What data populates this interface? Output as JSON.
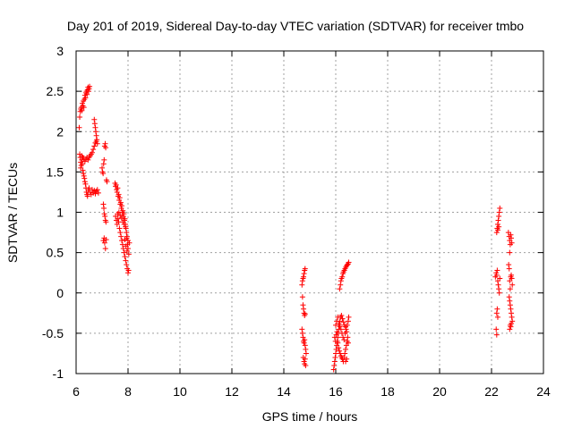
{
  "chart_data": {
    "type": "scatter",
    "title": "Day 201 of 2019, Sidereal Day-to-day VTEC variation (SDTVAR) for receiver tmbo",
    "xlabel": "GPS time / hours",
    "ylabel": "SDTVAR / TECUs",
    "xlim": [
      6,
      24
    ],
    "ylim": [
      -1,
      3
    ],
    "xticks": [
      6,
      8,
      10,
      12,
      14,
      16,
      18,
      20,
      22,
      24
    ],
    "yticks": [
      -1,
      -0.5,
      0,
      0.5,
      1,
      1.5,
      2,
      2.5,
      3
    ],
    "grid": true,
    "marker": "+",
    "color": "#ff0000",
    "series": [
      {
        "name": "tmbo",
        "points": [
          [
            6.12,
            2.05
          ],
          [
            6.14,
            2.18
          ],
          [
            6.16,
            2.25
          ],
          [
            6.18,
            2.28
          ],
          [
            6.2,
            2.3
          ],
          [
            6.22,
            2.26
          ],
          [
            6.24,
            2.35
          ],
          [
            6.26,
            2.32
          ],
          [
            6.28,
            2.38
          ],
          [
            6.3,
            2.3
          ],
          [
            6.32,
            2.4
          ],
          [
            6.34,
            2.45
          ],
          [
            6.36,
            2.42
          ],
          [
            6.38,
            2.48
          ],
          [
            6.4,
            2.5
          ],
          [
            6.42,
            2.46
          ],
          [
            6.44,
            2.52
          ],
          [
            6.46,
            2.55
          ],
          [
            6.48,
            2.5
          ],
          [
            6.5,
            2.53
          ],
          [
            6.52,
            2.56
          ],
          [
            6.14,
            1.72
          ],
          [
            6.16,
            1.68
          ],
          [
            6.18,
            1.62
          ],
          [
            6.18,
            1.55
          ],
          [
            6.2,
            1.58
          ],
          [
            6.22,
            1.65
          ],
          [
            6.24,
            1.6
          ],
          [
            6.26,
            1.52
          ],
          [
            6.28,
            1.48
          ],
          [
            6.3,
            1.45
          ],
          [
            6.32,
            1.42
          ],
          [
            6.34,
            1.38
          ],
          [
            6.36,
            1.35
          ],
          [
            6.38,
            1.3
          ],
          [
            6.4,
            1.25
          ],
          [
            6.42,
            1.22
          ],
          [
            6.44,
            1.2
          ],
          [
            6.46,
            1.25
          ],
          [
            6.48,
            1.28
          ],
          [
            6.22,
            1.7
          ],
          [
            6.26,
            1.68
          ],
          [
            6.3,
            1.66
          ],
          [
            6.34,
            1.63
          ],
          [
            6.38,
            1.66
          ],
          [
            6.42,
            1.68
          ],
          [
            6.46,
            1.65
          ],
          [
            6.5,
            1.68
          ],
          [
            6.54,
            1.7
          ],
          [
            6.58,
            1.72
          ],
          [
            6.62,
            1.74
          ],
          [
            6.66,
            1.78
          ],
          [
            6.7,
            1.82
          ],
          [
            6.74,
            1.86
          ],
          [
            6.78,
            1.88
          ],
          [
            6.5,
            1.3
          ],
          [
            6.54,
            1.25
          ],
          [
            6.58,
            1.22
          ],
          [
            6.62,
            1.28
          ],
          [
            6.66,
            1.24
          ],
          [
            6.7,
            1.27
          ],
          [
            6.74,
            1.23
          ],
          [
            6.78,
            1.26
          ],
          [
            6.82,
            1.28
          ],
          [
            6.86,
            1.24
          ],
          [
            6.7,
            2.15
          ],
          [
            6.72,
            2.1
          ],
          [
            6.74,
            2.05
          ],
          [
            6.76,
            2.0
          ],
          [
            6.78,
            1.95
          ],
          [
            6.8,
            1.9
          ],
          [
            6.82,
            1.85
          ],
          [
            7.0,
            1.55
          ],
          [
            7.02,
            1.5
          ],
          [
            7.04,
            1.48
          ],
          [
            7.06,
            1.6
          ],
          [
            7.08,
            1.65
          ],
          [
            7.1,
            1.82
          ],
          [
            7.12,
            1.85
          ],
          [
            7.14,
            1.8
          ],
          [
            7.05,
            1.1
          ],
          [
            7.07,
            1.05
          ],
          [
            7.09,
            0.98
          ],
          [
            7.11,
            0.95
          ],
          [
            7.13,
            0.9
          ],
          [
            7.15,
            0.88
          ],
          [
            7.17,
            1.4
          ],
          [
            7.19,
            1.38
          ],
          [
            7.05,
            0.65
          ],
          [
            7.08,
            0.68
          ],
          [
            7.1,
            0.62
          ],
          [
            7.13,
            0.55
          ],
          [
            7.16,
            0.66
          ],
          [
            7.5,
            1.36
          ],
          [
            7.52,
            1.32
          ],
          [
            7.54,
            1.34
          ],
          [
            7.56,
            1.28
          ],
          [
            7.58,
            1.25
          ],
          [
            7.6,
            1.3
          ],
          [
            7.62,
            1.2
          ],
          [
            7.64,
            1.22
          ],
          [
            7.66,
            1.15
          ],
          [
            7.68,
            1.18
          ],
          [
            7.7,
            1.1
          ],
          [
            7.72,
            1.12
          ],
          [
            7.74,
            1.05
          ],
          [
            7.76,
            1.08
          ],
          [
            7.78,
            1.0
          ],
          [
            7.8,
            1.02
          ],
          [
            7.82,
            0.95
          ],
          [
            7.84,
            0.98
          ],
          [
            7.86,
            0.9
          ],
          [
            7.88,
            0.92
          ],
          [
            7.9,
            0.85
          ],
          [
            7.92,
            0.8
          ],
          [
            7.94,
            0.75
          ],
          [
            7.96,
            0.7
          ],
          [
            7.98,
            0.6
          ],
          [
            8.0,
            0.55
          ],
          [
            7.52,
            0.95
          ],
          [
            7.55,
            0.9
          ],
          [
            7.58,
            0.85
          ],
          [
            7.61,
            0.92
          ],
          [
            7.64,
            0.88
          ],
          [
            7.67,
            0.8
          ],
          [
            7.7,
            0.75
          ],
          [
            7.73,
            0.7
          ],
          [
            7.76,
            0.65
          ],
          [
            7.79,
            0.6
          ],
          [
            7.82,
            0.55
          ],
          [
            7.85,
            0.5
          ],
          [
            7.88,
            0.45
          ],
          [
            7.91,
            0.4
          ],
          [
            7.94,
            0.35
          ],
          [
            7.97,
            0.3
          ],
          [
            8.0,
            0.25
          ],
          [
            8.02,
            0.28
          ],
          [
            7.6,
            0.98
          ],
          [
            7.65,
            1.0
          ],
          [
            7.7,
            0.96
          ],
          [
            7.75,
            0.93
          ],
          [
            7.8,
            0.88
          ],
          [
            7.85,
            0.85
          ],
          [
            7.9,
            0.82
          ],
          [
            7.95,
            0.68
          ],
          [
            8.0,
            0.65
          ],
          [
            8.05,
            0.62
          ],
          [
            7.88,
            0.66
          ],
          [
            7.92,
            0.58
          ],
          [
            7.96,
            0.52
          ],
          [
            8.03,
            0.48
          ],
          [
            14.7,
            0.1
          ],
          [
            14.72,
            0.15
          ],
          [
            14.74,
            0.18
          ],
          [
            14.76,
            0.2
          ],
          [
            14.78,
            0.24
          ],
          [
            14.8,
            0.28
          ],
          [
            14.82,
            0.3
          ],
          [
            14.72,
            -0.05
          ],
          [
            14.74,
            -0.15
          ],
          [
            14.76,
            -0.2
          ],
          [
            14.78,
            -0.25
          ],
          [
            14.8,
            -0.28
          ],
          [
            14.82,
            -0.26
          ],
          [
            14.7,
            -0.45
          ],
          [
            14.72,
            -0.5
          ],
          [
            14.74,
            -0.55
          ],
          [
            14.76,
            -0.6
          ],
          [
            14.78,
            -0.62
          ],
          [
            14.8,
            -0.58
          ],
          [
            14.82,
            -0.65
          ],
          [
            14.84,
            -0.7
          ],
          [
            14.86,
            -0.75
          ],
          [
            14.75,
            -0.8
          ],
          [
            14.78,
            -0.85
          ],
          [
            14.8,
            -0.88
          ],
          [
            14.82,
            -0.82
          ],
          [
            14.84,
            -0.9
          ],
          [
            15.92,
            -0.95
          ],
          [
            15.94,
            -0.9
          ],
          [
            15.96,
            -0.85
          ],
          [
            15.98,
            -0.8
          ],
          [
            16.0,
            -0.75
          ],
          [
            16.02,
            -0.7
          ],
          [
            16.04,
            -0.65
          ],
          [
            16.06,
            -0.6
          ],
          [
            16.08,
            -0.55
          ],
          [
            16.1,
            -0.5
          ],
          [
            16.12,
            -0.45
          ],
          [
            16.14,
            -0.4
          ],
          [
            16.16,
            -0.35
          ],
          [
            16.18,
            -0.3
          ],
          [
            15.96,
            -0.55
          ],
          [
            15.99,
            -0.6
          ],
          [
            16.02,
            -0.52
          ],
          [
            16.05,
            -0.48
          ],
          [
            16.08,
            -0.62
          ],
          [
            16.11,
            -0.68
          ],
          [
            16.14,
            -0.72
          ],
          [
            16.17,
            -0.75
          ],
          [
            16.2,
            -0.78
          ],
          [
            16.23,
            -0.8
          ],
          [
            16.26,
            -0.82
          ],
          [
            16.29,
            -0.85
          ],
          [
            16.32,
            -0.8
          ],
          [
            16.35,
            -0.75
          ],
          [
            16.38,
            -0.7
          ],
          [
            16.41,
            -0.65
          ],
          [
            16.44,
            -0.6
          ],
          [
            16.0,
            -0.4
          ],
          [
            16.04,
            -0.35
          ],
          [
            16.08,
            -0.3
          ],
          [
            16.12,
            -0.38
          ],
          [
            16.16,
            -0.42
          ],
          [
            16.2,
            -0.45
          ],
          [
            16.24,
            -0.5
          ],
          [
            16.28,
            -0.55
          ],
          [
            16.32,
            -0.58
          ],
          [
            16.36,
            -0.5
          ],
          [
            16.4,
            -0.45
          ],
          [
            16.44,
            -0.4
          ],
          [
            16.48,
            -0.35
          ],
          [
            16.5,
            -0.3
          ],
          [
            16.22,
            -0.28
          ],
          [
            16.26,
            -0.32
          ],
          [
            16.3,
            -0.36
          ],
          [
            16.34,
            -0.4
          ],
          [
            16.38,
            -0.42
          ],
          [
            16.42,
            -0.48
          ],
          [
            16.46,
            -0.55
          ],
          [
            16.48,
            -0.62
          ],
          [
            16.38,
            -0.85
          ],
          [
            16.42,
            -0.82
          ],
          [
            16.15,
            0.05
          ],
          [
            16.18,
            0.1
          ],
          [
            16.2,
            0.15
          ],
          [
            16.22,
            0.18
          ],
          [
            16.25,
            0.2
          ],
          [
            16.28,
            0.24
          ],
          [
            16.3,
            0.26
          ],
          [
            16.33,
            0.28
          ],
          [
            16.36,
            0.3
          ],
          [
            16.39,
            0.32
          ],
          [
            16.42,
            0.34
          ],
          [
            16.45,
            0.35
          ],
          [
            16.48,
            0.36
          ],
          [
            16.5,
            0.38
          ],
          [
            22.2,
            0.75
          ],
          [
            22.22,
            0.8
          ],
          [
            22.24,
            0.85
          ],
          [
            22.26,
            0.9
          ],
          [
            22.28,
            0.95
          ],
          [
            22.3,
            1.0
          ],
          [
            22.32,
            1.05
          ],
          [
            22.24,
            0.78
          ],
          [
            22.28,
            0.82
          ],
          [
            22.15,
            0.2
          ],
          [
            22.18,
            0.25
          ],
          [
            22.2,
            0.22
          ],
          [
            22.22,
            0.28
          ],
          [
            22.24,
            0.15
          ],
          [
            22.26,
            0.1
          ],
          [
            22.28,
            0.05
          ],
          [
            22.3,
            0.0
          ],
          [
            22.32,
            0.18
          ],
          [
            22.2,
            -0.25
          ],
          [
            22.22,
            -0.2
          ],
          [
            22.24,
            -0.3
          ],
          [
            22.18,
            -0.45
          ],
          [
            22.2,
            -0.52
          ],
          [
            22.65,
            0.75
          ],
          [
            22.68,
            0.7
          ],
          [
            22.7,
            0.65
          ],
          [
            22.72,
            0.6
          ],
          [
            22.74,
            0.72
          ],
          [
            22.76,
            0.68
          ],
          [
            22.78,
            0.62
          ],
          [
            22.7,
            0.5
          ],
          [
            22.66,
            0.35
          ],
          [
            22.68,
            0.3
          ],
          [
            22.7,
            0.15
          ],
          [
            22.72,
            0.05
          ],
          [
            22.74,
            0.2
          ],
          [
            22.76,
            0.22
          ],
          [
            22.78,
            0.18
          ],
          [
            22.8,
            0.1
          ],
          [
            22.68,
            -0.05
          ],
          [
            22.7,
            -0.1
          ],
          [
            22.72,
            -0.15
          ],
          [
            22.74,
            -0.2
          ],
          [
            22.76,
            -0.25
          ],
          [
            22.78,
            -0.3
          ],
          [
            22.8,
            -0.35
          ],
          [
            22.72,
            -0.4
          ],
          [
            22.7,
            -0.45
          ],
          [
            22.74,
            -0.42
          ],
          [
            22.76,
            -0.38
          ]
        ]
      }
    ]
  }
}
